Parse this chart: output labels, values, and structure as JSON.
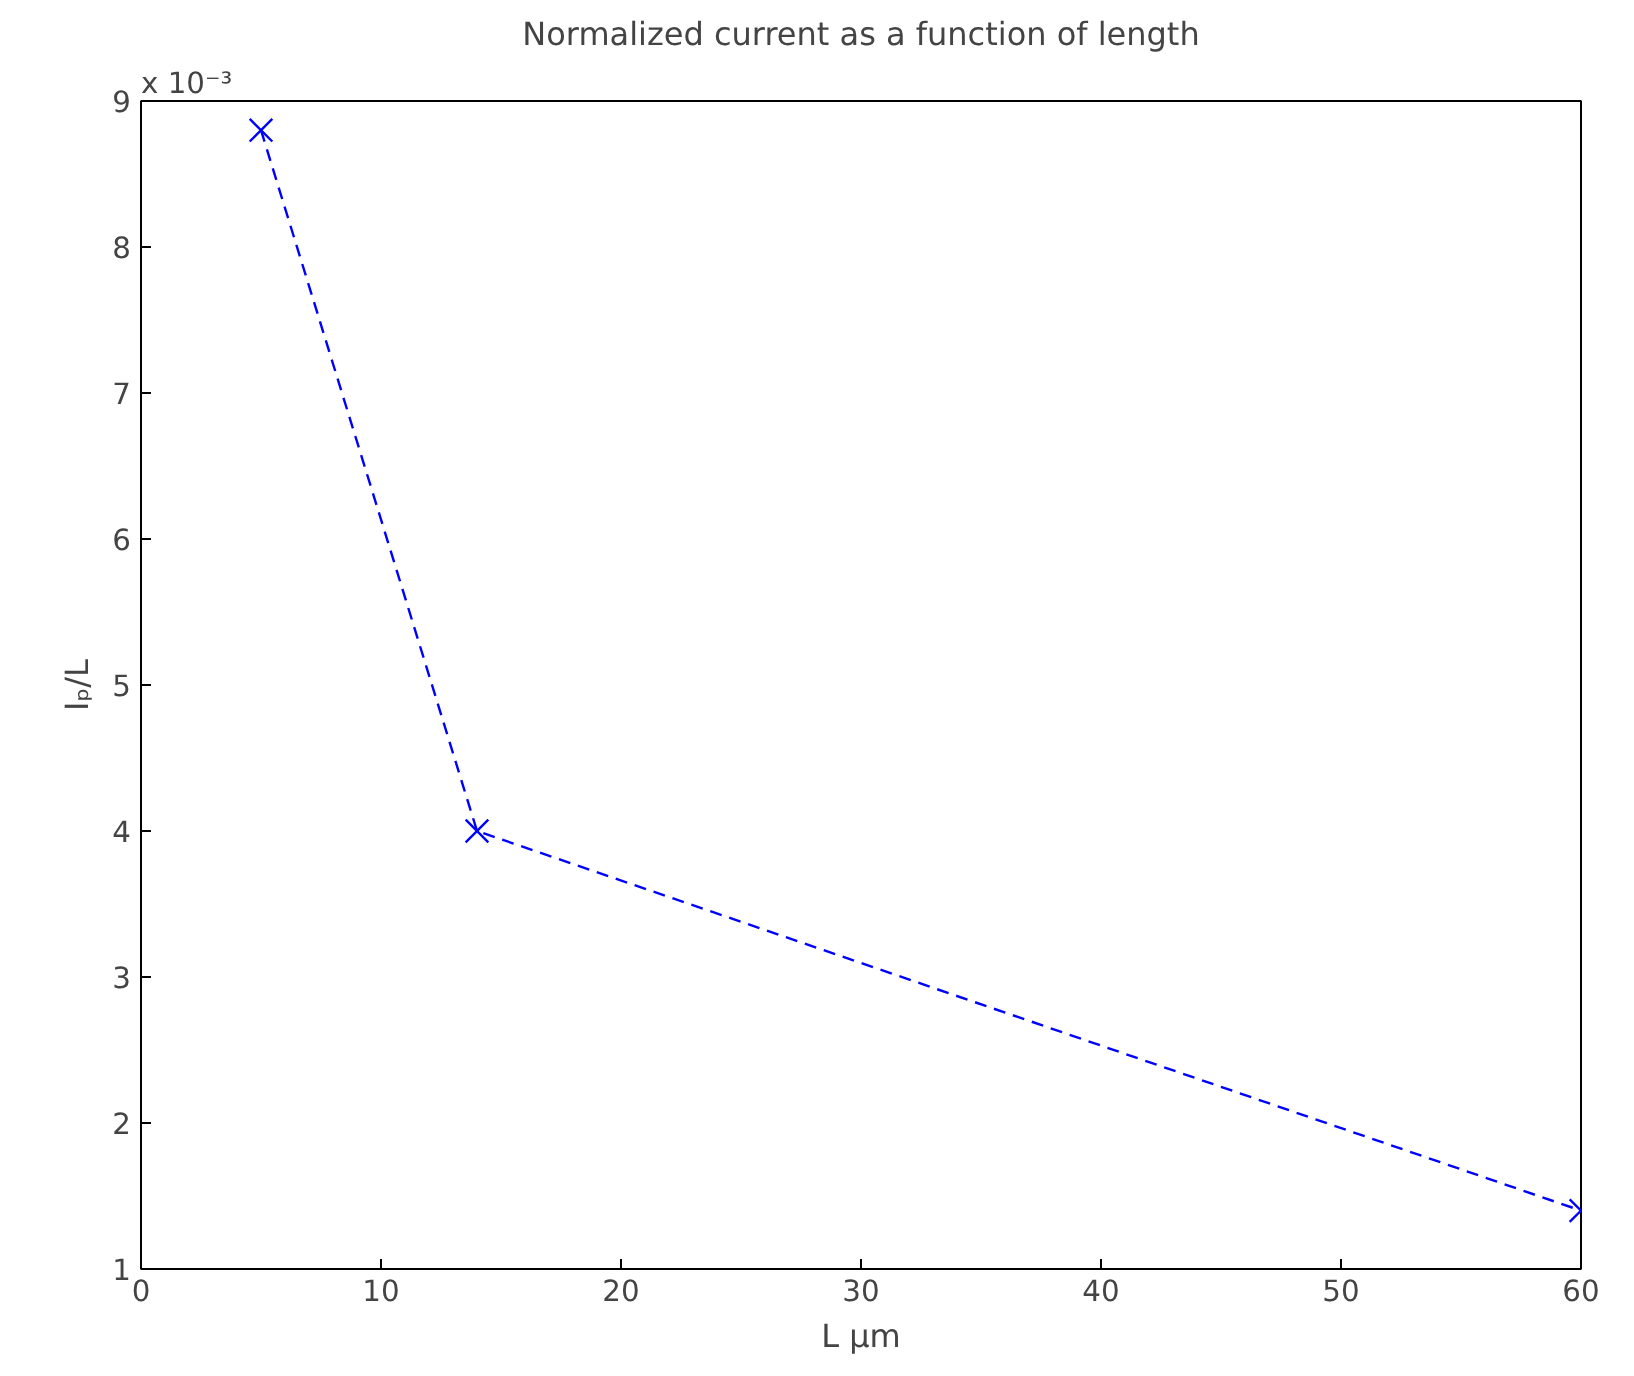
{
  "chart_data": {
    "type": "line",
    "title": "Normalized current as a function of length",
    "xlabel": "L µm",
    "ylabel": "Iₚ/L",
    "annotations": [
      "x 10⁻³"
    ],
    "x": [
      5,
      14,
      60
    ],
    "series": [
      {
        "color": "#0000ff",
        "values": [
          8.8,
          4.0,
          1.4
        ]
      }
    ],
    "xlim": [
      0,
      60
    ],
    "xticks": [
      0,
      10,
      20,
      30,
      40,
      50,
      60
    ],
    "ylim": [
      1,
      9
    ],
    "yticks": [
      1,
      2,
      3,
      4,
      5,
      6,
      7,
      8,
      9
    ],
    "grid": false,
    "marker": "cross",
    "line_style": "dashed"
  }
}
